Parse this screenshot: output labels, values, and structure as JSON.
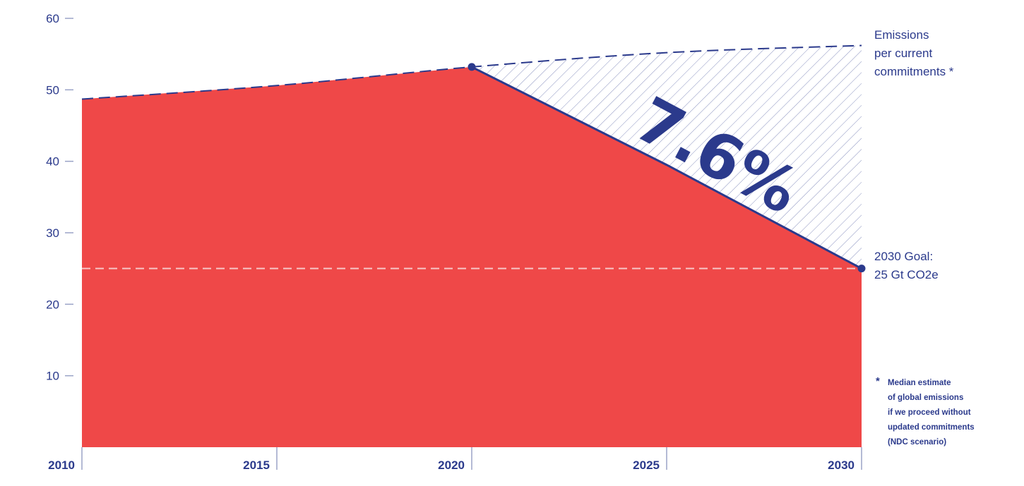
{
  "chart_data": {
    "type": "area",
    "x_ticks": [
      "2010",
      "2015",
      "2020",
      "2025",
      "2030"
    ],
    "y_ticks": [
      "10",
      "20",
      "30",
      "40",
      "50",
      "60"
    ],
    "xlim": [
      2010,
      2030
    ],
    "ylim": [
      0,
      60
    ],
    "series": [
      {
        "style": "red-filled-area",
        "x": [
          2010,
          2015,
          2020,
          2025,
          2030
        ],
        "y": [
          48.7,
          50.6,
          53.2,
          39.5,
          25
        ]
      },
      {
        "style": "dashed-navy-line",
        "x": [
          2010,
          2015,
          2020,
          2025,
          2030
        ],
        "y": [
          48.7,
          50.6,
          53.2,
          55.2,
          56.2
        ]
      }
    ],
    "goal_line": {
      "y": 25,
      "style": "dashed-light"
    },
    "markers": [
      {
        "x": 2020,
        "y": 53.2
      },
      {
        "x": 2030,
        "y": 25
      }
    ],
    "big_label": "7.6%",
    "annotation_top": [
      "Emissions",
      "per current",
      "commitments *"
    ],
    "annotation_goal": [
      "2030 Goal:",
      "25 Gt CO2e"
    ],
    "footnote_star": "*",
    "footnote": [
      "Median estimate",
      "of global emissions",
      "if we proceed without",
      "updated commitments",
      "(NDC scenario)"
    ],
    "colors": {
      "area": "#ef4848",
      "navy": "#2b3a8c",
      "axis": "#9aa3c7",
      "hatch": "#2b3a8c"
    }
  }
}
